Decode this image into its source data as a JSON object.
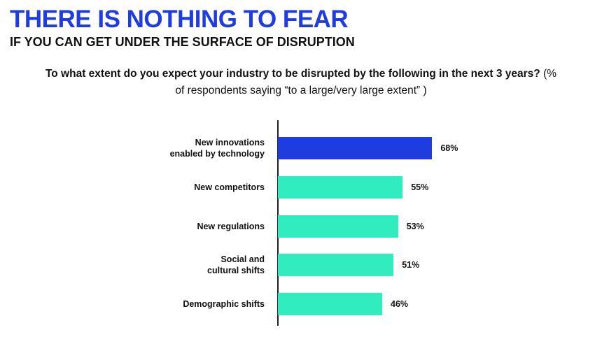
{
  "chart_data": {
    "type": "bar",
    "orientation": "horizontal",
    "title": "THERE IS NOTHING TO FEAR",
    "subtitle": "IF YOU CAN GET UNDER THE SURFACE OF DISRUPTION",
    "question": "To what extent do you expect your industry to be disrupted by the following in the next 3 years?",
    "question_note": "(% of respondents saying “to a large/very large extent” )",
    "categories": [
      "New innovations\nenabled by technology",
      "New competitors",
      "New regulations",
      "Social and\ncultural shifts",
      "Demographic shifts"
    ],
    "values": [
      68,
      55,
      53,
      51,
      46
    ],
    "value_labels": [
      "68%",
      "55%",
      "53%",
      "51%",
      "46%"
    ],
    "colors": [
      "#1f3ce0",
      "#30ecbe",
      "#30ecbe",
      "#30ecbe",
      "#30ecbe"
    ]
  }
}
